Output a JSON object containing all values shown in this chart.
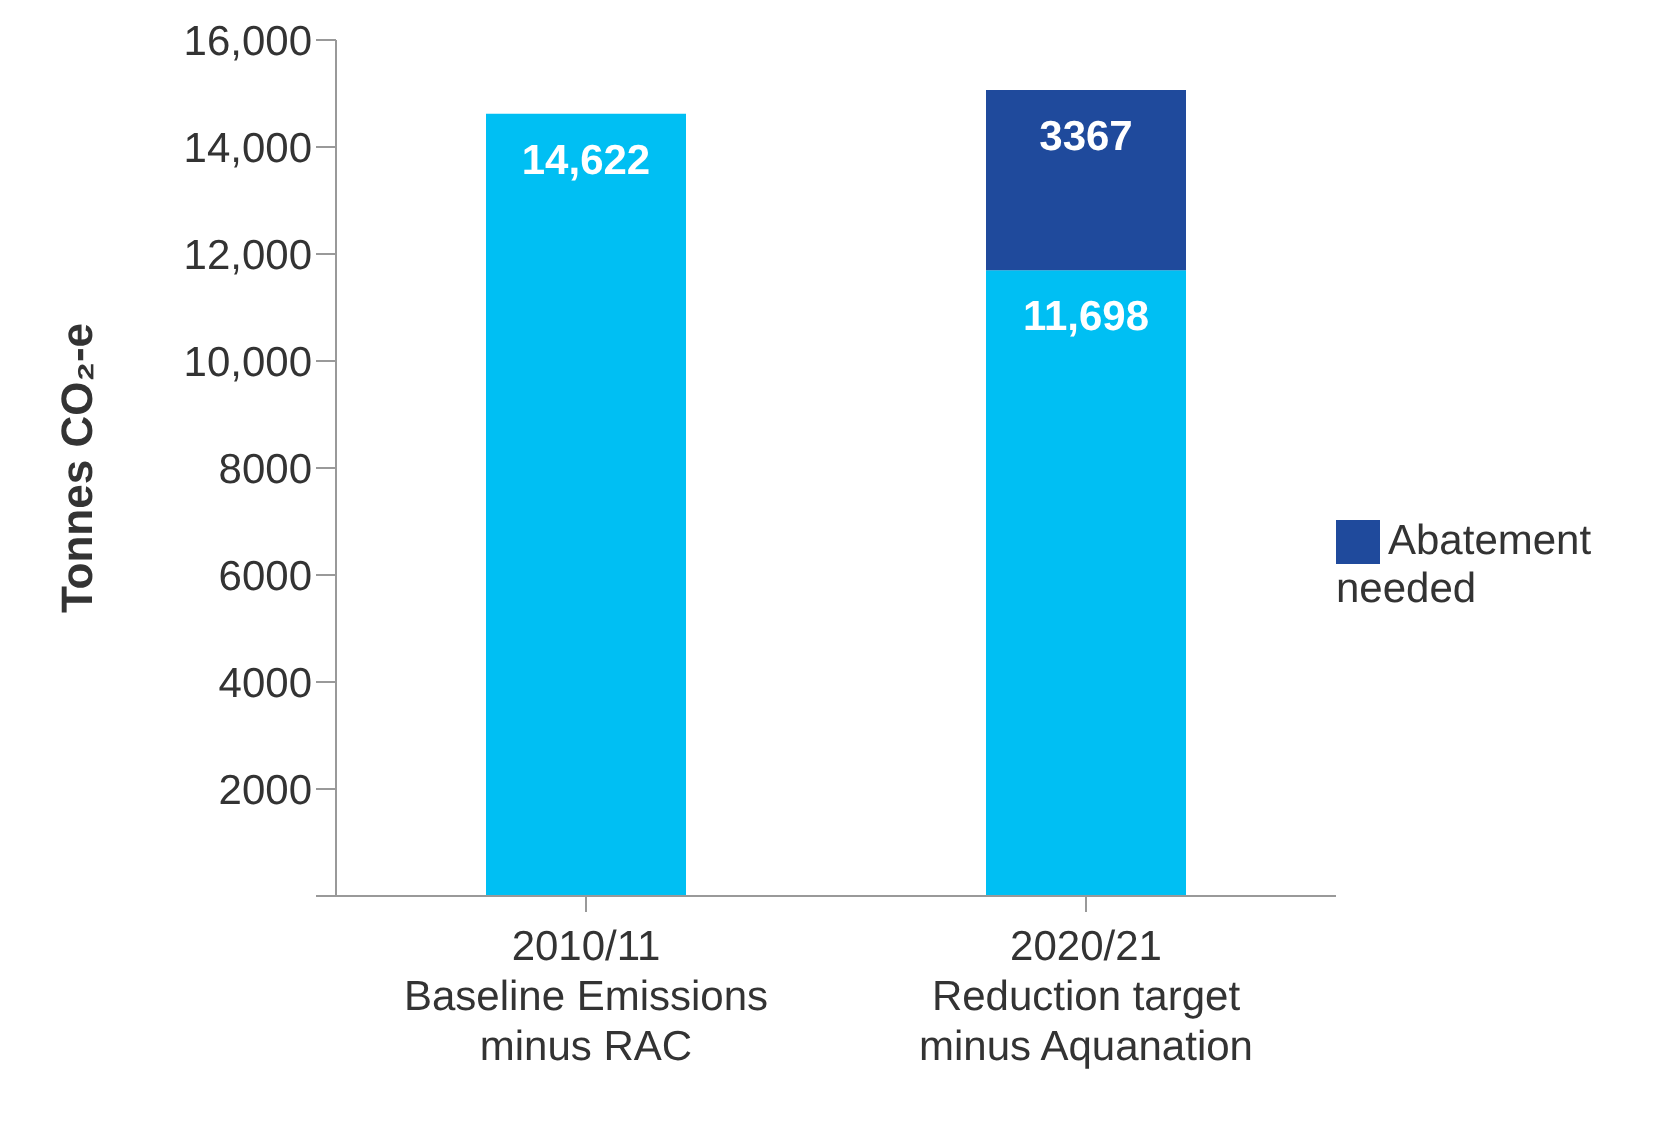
{
  "chart_data": {
    "type": "bar",
    "stacked": true,
    "ylabel": "Tonnes CO₂-e",
    "categories": [
      "2010/11\nBaseline Emissions\nminus RAC",
      "2020/21\nReduction target\nminus Aquanation"
    ],
    "series": [
      {
        "color": "#00bff3",
        "values": [
          14622,
          11698
        ],
        "value_labels": [
          "14,622",
          "11,698"
        ]
      },
      {
        "name": "Abatement needed",
        "color": "#1f4a9c",
        "values": [
          null,
          3367
        ],
        "value_labels": [
          null,
          "3367"
        ]
      }
    ],
    "ylim": [
      0,
      16000
    ],
    "yticks": [
      {
        "value": 0,
        "label": null
      },
      2000,
      4000,
      6000,
      8000,
      {
        "value": 10000,
        "label": "10,000"
      },
      {
        "value": 12000,
        "label": "12,000"
      },
      {
        "value": 14000,
        "label": "14,000"
      },
      {
        "value": 16000,
        "label": "16,000"
      }
    ],
    "legend": "right",
    "grid": false
  }
}
